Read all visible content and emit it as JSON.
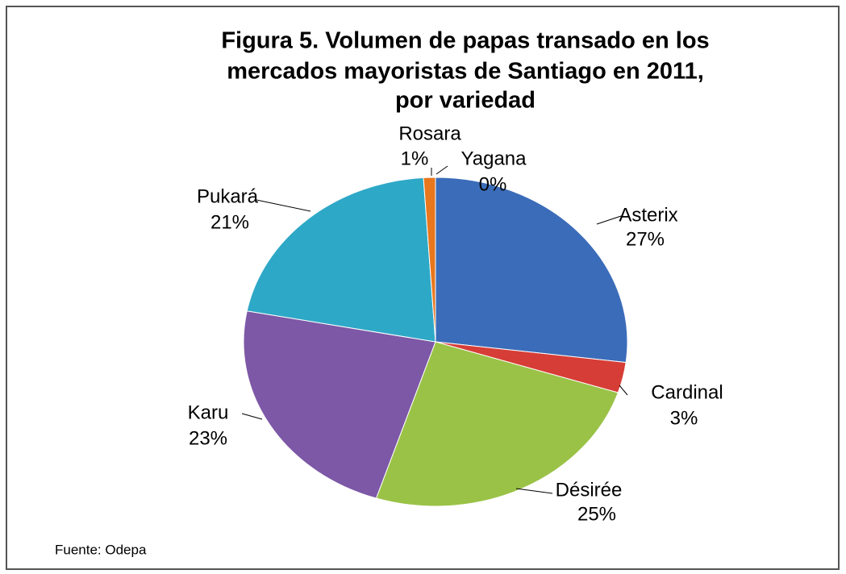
{
  "chart_data": {
    "type": "pie",
    "title": [
      "Figura 5. Volumen de papas transado en los",
      "mercados mayoristas  de Santiago en 2011,",
      "por variedad"
    ],
    "categories": [
      "Asterix",
      "Cardinal",
      "Désirée",
      "Karu",
      "Pukará",
      "Rosara",
      "Yagana"
    ],
    "values": [
      27,
      3,
      25,
      23,
      21,
      1,
      0
    ],
    "value_labels": [
      "27%",
      "3%",
      "25%",
      "23%",
      "21%",
      "1%",
      "0%"
    ],
    "colors": [
      "#3b6cb9",
      "#d63d36",
      "#9ac247",
      "#7d58a6",
      "#2ea8c7",
      "#e8771e",
      "#4a7fc1"
    ],
    "source": "Fuente: Odepa"
  }
}
